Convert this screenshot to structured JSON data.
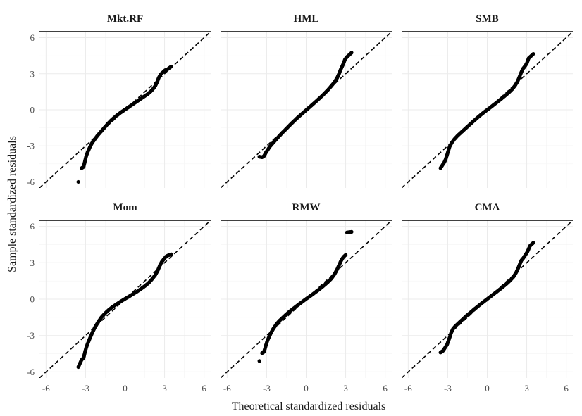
{
  "chart_data": {
    "type": "scatter",
    "kind": "facetted QQ plot",
    "xlabel": "Theoretical standardized residuals",
    "ylabel": "Sample standardized residuals",
    "xlim": [
      -6.5,
      6.5
    ],
    "ylim": [
      -6.5,
      6.5
    ],
    "x_ticks": [
      -6,
      -3,
      0,
      3,
      6
    ],
    "y_ticks": [
      -6,
      -3,
      0,
      3,
      6
    ],
    "x_tick_labels": [
      "-6",
      "-3",
      "0",
      "3",
      "6"
    ],
    "y_tick_labels": [
      "-6",
      "-3",
      "0",
      "3",
      "6"
    ],
    "reference_line": {
      "slope": 1,
      "intercept": 0,
      "style": "dashed"
    },
    "grid": true,
    "legend": "none",
    "panels": [
      {
        "name": "Mkt.RF",
        "points": [
          [
            -3.55,
            -6.0
          ],
          [
            -3.3,
            -4.85
          ],
          [
            -3.15,
            -4.75
          ],
          [
            -3.05,
            -4.3
          ],
          [
            -2.95,
            -3.85
          ],
          [
            -2.85,
            -3.55
          ],
          [
            -2.75,
            -3.3
          ],
          [
            -2.65,
            -3.05
          ],
          [
            -2.5,
            -2.75
          ],
          [
            -2.3,
            -2.45
          ],
          [
            -2.1,
            -2.15
          ],
          [
            -1.9,
            -1.9
          ],
          [
            -1.7,
            -1.65
          ],
          [
            -1.5,
            -1.4
          ],
          [
            -1.3,
            -1.15
          ],
          [
            -1.1,
            -0.92
          ],
          [
            -0.9,
            -0.72
          ],
          [
            -0.7,
            -0.53
          ],
          [
            -0.5,
            -0.36
          ],
          [
            -0.3,
            -0.2
          ],
          [
            -0.1,
            -0.05
          ],
          [
            0.1,
            0.1
          ],
          [
            0.3,
            0.25
          ],
          [
            0.5,
            0.4
          ],
          [
            0.7,
            0.55
          ],
          [
            0.9,
            0.7
          ],
          [
            1.1,
            0.85
          ],
          [
            1.3,
            1.0
          ],
          [
            1.5,
            1.15
          ],
          [
            1.7,
            1.3
          ],
          [
            1.9,
            1.48
          ],
          [
            2.1,
            1.7
          ],
          [
            2.3,
            2.0
          ],
          [
            2.45,
            2.35
          ],
          [
            2.55,
            2.65
          ],
          [
            2.7,
            2.95
          ],
          [
            2.9,
            3.15
          ],
          [
            3.05,
            3.3
          ],
          [
            3.2,
            3.35
          ],
          [
            3.5,
            3.6
          ]
        ]
      },
      {
        "name": "HML",
        "points": [
          [
            -3.55,
            -3.9
          ],
          [
            -3.35,
            -3.95
          ],
          [
            -3.2,
            -3.85
          ],
          [
            -3.05,
            -3.55
          ],
          [
            -2.9,
            -3.3
          ],
          [
            -2.75,
            -3.05
          ],
          [
            -2.55,
            -2.8
          ],
          [
            -2.35,
            -2.55
          ],
          [
            -2.1,
            -2.25
          ],
          [
            -1.85,
            -1.95
          ],
          [
            -1.6,
            -1.68
          ],
          [
            -1.35,
            -1.4
          ],
          [
            -1.1,
            -1.12
          ],
          [
            -0.85,
            -0.86
          ],
          [
            -0.6,
            -0.6
          ],
          [
            -0.35,
            -0.36
          ],
          [
            -0.1,
            -0.12
          ],
          [
            0.15,
            0.12
          ],
          [
            0.4,
            0.36
          ],
          [
            0.65,
            0.6
          ],
          [
            0.9,
            0.85
          ],
          [
            1.15,
            1.1
          ],
          [
            1.4,
            1.37
          ],
          [
            1.65,
            1.65
          ],
          [
            1.9,
            1.97
          ],
          [
            2.15,
            2.3
          ],
          [
            2.35,
            2.65
          ],
          [
            2.5,
            3.0
          ],
          [
            2.62,
            3.35
          ],
          [
            2.75,
            3.65
          ],
          [
            2.85,
            3.9
          ],
          [
            2.95,
            4.2
          ],
          [
            3.1,
            4.4
          ],
          [
            3.25,
            4.55
          ],
          [
            3.45,
            4.75
          ]
        ]
      },
      {
        "name": "SMB",
        "points": [
          [
            -3.55,
            -4.85
          ],
          [
            -3.4,
            -4.6
          ],
          [
            -3.25,
            -4.35
          ],
          [
            -3.15,
            -4.1
          ],
          [
            -3.05,
            -3.75
          ],
          [
            -2.95,
            -3.4
          ],
          [
            -2.85,
            -3.05
          ],
          [
            -2.7,
            -2.75
          ],
          [
            -2.5,
            -2.45
          ],
          [
            -2.25,
            -2.15
          ],
          [
            -1.95,
            -1.85
          ],
          [
            -1.65,
            -1.55
          ],
          [
            -1.35,
            -1.25
          ],
          [
            -1.05,
            -0.95
          ],
          [
            -0.75,
            -0.66
          ],
          [
            -0.45,
            -0.38
          ],
          [
            -0.15,
            -0.12
          ],
          [
            0.15,
            0.12
          ],
          [
            0.45,
            0.38
          ],
          [
            0.75,
            0.64
          ],
          [
            1.05,
            0.9
          ],
          [
            1.35,
            1.17
          ],
          [
            1.65,
            1.45
          ],
          [
            1.9,
            1.72
          ],
          [
            2.1,
            2.0
          ],
          [
            2.3,
            2.35
          ],
          [
            2.45,
            2.75
          ],
          [
            2.58,
            3.1
          ],
          [
            2.7,
            3.4
          ],
          [
            2.85,
            3.6
          ],
          [
            3.0,
            3.85
          ],
          [
            3.15,
            4.3
          ],
          [
            3.5,
            4.65
          ]
        ]
      },
      {
        "name": "Mom",
        "points": [
          [
            -3.55,
            -5.6
          ],
          [
            -3.3,
            -5.0
          ],
          [
            -3.15,
            -4.85
          ],
          [
            -3.05,
            -4.4
          ],
          [
            -2.95,
            -4.0
          ],
          [
            -2.85,
            -3.7
          ],
          [
            -2.7,
            -3.3
          ],
          [
            -2.5,
            -2.8
          ],
          [
            -2.3,
            -2.35
          ],
          [
            -2.05,
            -1.9
          ],
          [
            -1.8,
            -1.5
          ],
          [
            -1.5,
            -1.15
          ],
          [
            -1.2,
            -0.85
          ],
          [
            -0.9,
            -0.6
          ],
          [
            -0.6,
            -0.38
          ],
          [
            -0.3,
            -0.17
          ],
          [
            0.0,
            0.03
          ],
          [
            0.3,
            0.22
          ],
          [
            0.6,
            0.42
          ],
          [
            0.9,
            0.62
          ],
          [
            1.2,
            0.84
          ],
          [
            1.5,
            1.08
          ],
          [
            1.8,
            1.35
          ],
          [
            2.05,
            1.65
          ],
          [
            2.3,
            2.0
          ],
          [
            2.5,
            2.4
          ],
          [
            2.65,
            2.8
          ],
          [
            2.8,
            3.1
          ],
          [
            2.95,
            3.3
          ],
          [
            3.1,
            3.5
          ],
          [
            3.25,
            3.6
          ],
          [
            3.5,
            3.7
          ]
        ]
      },
      {
        "name": "RMW",
        "points": [
          [
            -3.55,
            -5.1
          ],
          [
            -3.35,
            -4.45
          ],
          [
            -3.2,
            -4.35
          ],
          [
            -3.05,
            -3.8
          ],
          [
            -2.95,
            -3.45
          ],
          [
            -2.85,
            -3.2
          ],
          [
            -2.7,
            -2.85
          ],
          [
            -2.5,
            -2.45
          ],
          [
            -2.25,
            -2.05
          ],
          [
            -2.0,
            -1.75
          ],
          [
            -1.7,
            -1.45
          ],
          [
            -1.4,
            -1.15
          ],
          [
            -1.1,
            -0.88
          ],
          [
            -0.8,
            -0.63
          ],
          [
            -0.5,
            -0.38
          ],
          [
            -0.2,
            -0.14
          ],
          [
            0.1,
            0.1
          ],
          [
            0.4,
            0.33
          ],
          [
            0.7,
            0.57
          ],
          [
            1.0,
            0.82
          ],
          [
            1.3,
            1.08
          ],
          [
            1.6,
            1.36
          ],
          [
            1.9,
            1.68
          ],
          [
            2.15,
            2.05
          ],
          [
            2.35,
            2.45
          ],
          [
            2.5,
            2.8
          ],
          [
            2.62,
            3.1
          ],
          [
            2.75,
            3.35
          ],
          [
            2.85,
            3.5
          ],
          [
            3.0,
            3.65
          ],
          [
            3.1,
            5.5
          ],
          [
            3.45,
            5.55
          ]
        ]
      },
      {
        "name": "CMA",
        "points": [
          [
            -3.55,
            -4.4
          ],
          [
            -3.35,
            -4.25
          ],
          [
            -3.2,
            -4.0
          ],
          [
            -3.05,
            -3.75
          ],
          [
            -2.95,
            -3.45
          ],
          [
            -2.85,
            -3.15
          ],
          [
            -2.75,
            -2.8
          ],
          [
            -2.6,
            -2.45
          ],
          [
            -2.4,
            -2.2
          ],
          [
            -2.15,
            -1.95
          ],
          [
            -1.85,
            -1.65
          ],
          [
            -1.55,
            -1.35
          ],
          [
            -1.25,
            -1.08
          ],
          [
            -0.95,
            -0.8
          ],
          [
            -0.65,
            -0.54
          ],
          [
            -0.35,
            -0.28
          ],
          [
            -0.05,
            -0.03
          ],
          [
            0.25,
            0.22
          ],
          [
            0.55,
            0.47
          ],
          [
            0.85,
            0.72
          ],
          [
            1.15,
            0.98
          ],
          [
            1.45,
            1.25
          ],
          [
            1.75,
            1.55
          ],
          [
            2.0,
            1.85
          ],
          [
            2.2,
            2.2
          ],
          [
            2.35,
            2.55
          ],
          [
            2.48,
            2.9
          ],
          [
            2.6,
            3.2
          ],
          [
            2.75,
            3.4
          ],
          [
            2.9,
            3.65
          ],
          [
            3.05,
            3.9
          ],
          [
            3.25,
            4.4
          ],
          [
            3.5,
            4.65
          ]
        ]
      }
    ]
  }
}
